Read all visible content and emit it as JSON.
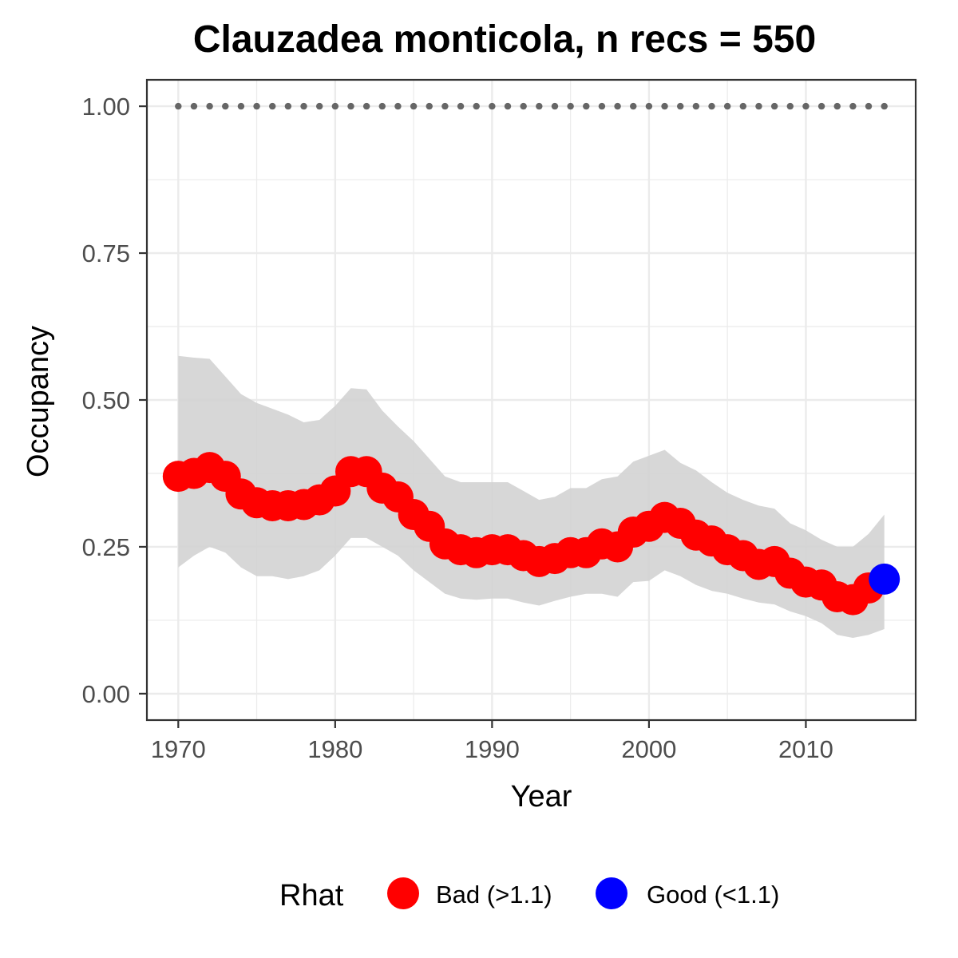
{
  "chart_data": {
    "type": "line",
    "title": "Clauzadea monticola, n recs = 550",
    "xlabel": "Year",
    "ylabel": "Occupancy",
    "xlim": [
      1968,
      2017
    ],
    "ylim": [
      -0.045,
      1.045
    ],
    "x_ticks": [
      1970,
      1980,
      1990,
      2000,
      2010
    ],
    "x_tick_labels": [
      "1970",
      "1980",
      "1990",
      "2000",
      "2010"
    ],
    "y_ticks": [
      0,
      0.25,
      0.5,
      0.75,
      1
    ],
    "y_tick_labels": [
      "0.00",
      "0.25",
      "0.50",
      "0.75",
      "1.00"
    ],
    "grid": true,
    "legend": {
      "position": "bottom",
      "title": "Rhat",
      "items": [
        {
          "label": "Bad (>1.1)",
          "color": "#ff0000"
        },
        {
          "label": "Good (<1.1)",
          "color": "#0000ff"
        }
      ]
    },
    "colors": {
      "bad": "#ff0000",
      "good": "#0000ff",
      "ribbon": "#d3d3d3",
      "dots": "#666666"
    },
    "years": [
      1970,
      1971,
      1972,
      1973,
      1974,
      1975,
      1976,
      1977,
      1978,
      1979,
      1980,
      1981,
      1982,
      1983,
      1984,
      1985,
      1986,
      1987,
      1988,
      1989,
      1990,
      1991,
      1992,
      1993,
      1994,
      1995,
      1996,
      1997,
      1998,
      1999,
      2000,
      2001,
      2002,
      2003,
      2004,
      2005,
      2006,
      2007,
      2008,
      2009,
      2010,
      2011,
      2012,
      2013,
      2014,
      2015
    ],
    "occupancy": [
      0.37,
      0.375,
      0.385,
      0.37,
      0.34,
      0.325,
      0.32,
      0.32,
      0.322,
      0.33,
      0.345,
      0.378,
      0.378,
      0.35,
      0.335,
      0.305,
      0.285,
      0.255,
      0.245,
      0.24,
      0.245,
      0.245,
      0.235,
      0.225,
      0.23,
      0.24,
      0.24,
      0.255,
      0.25,
      0.275,
      0.285,
      0.3,
      0.29,
      0.27,
      0.26,
      0.245,
      0.235,
      0.22,
      0.225,
      0.205,
      0.19,
      0.185,
      0.165,
      0.16,
      0.18,
      0.195
    ],
    "lower": [
      0.215,
      0.235,
      0.25,
      0.24,
      0.215,
      0.2,
      0.2,
      0.195,
      0.2,
      0.21,
      0.235,
      0.265,
      0.265,
      0.25,
      0.235,
      0.21,
      0.19,
      0.17,
      0.162,
      0.16,
      0.162,
      0.162,
      0.155,
      0.15,
      0.158,
      0.165,
      0.17,
      0.17,
      0.165,
      0.19,
      0.192,
      0.21,
      0.2,
      0.185,
      0.175,
      0.17,
      0.162,
      0.155,
      0.152,
      0.14,
      0.132,
      0.12,
      0.1,
      0.095,
      0.1,
      0.11
    ],
    "upper": [
      0.575,
      0.572,
      0.57,
      0.54,
      0.51,
      0.495,
      0.485,
      0.475,
      0.462,
      0.466,
      0.49,
      0.52,
      0.518,
      0.482,
      0.455,
      0.43,
      0.4,
      0.37,
      0.36,
      0.36,
      0.36,
      0.36,
      0.345,
      0.33,
      0.335,
      0.35,
      0.35,
      0.365,
      0.37,
      0.395,
      0.405,
      0.415,
      0.393,
      0.38,
      0.36,
      0.342,
      0.33,
      0.32,
      0.315,
      0.29,
      0.278,
      0.262,
      0.25,
      0.25,
      0.272,
      0.305
    ],
    "rhat_status": [
      "bad",
      "bad",
      "bad",
      "bad",
      "bad",
      "bad",
      "bad",
      "bad",
      "bad",
      "bad",
      "bad",
      "bad",
      "bad",
      "bad",
      "bad",
      "bad",
      "bad",
      "bad",
      "bad",
      "bad",
      "bad",
      "bad",
      "bad",
      "bad",
      "bad",
      "bad",
      "bad",
      "bad",
      "bad",
      "bad",
      "bad",
      "bad",
      "bad",
      "bad",
      "bad",
      "bad",
      "bad",
      "bad",
      "bad",
      "bad",
      "bad",
      "bad",
      "bad",
      "bad",
      "bad",
      "good"
    ],
    "reference_line": {
      "value": 1.0,
      "style": "dotted"
    }
  }
}
